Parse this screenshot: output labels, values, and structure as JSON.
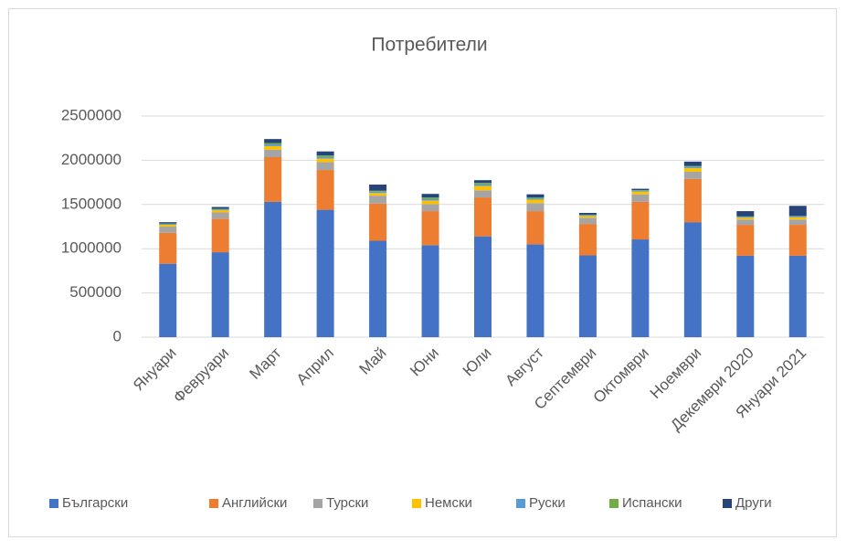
{
  "chart_data": {
    "type": "bar",
    "stacked": true,
    "title": "Потребители",
    "categories": [
      "Януари",
      "Февруари",
      "Март",
      "Април",
      "Май",
      "Юни",
      "Юли",
      "Август",
      "Септември",
      "Октомври",
      "Ноември",
      "Декември 2020",
      "Януари 2021"
    ],
    "series": [
      {
        "name": "Български",
        "color": "#4472c4",
        "values": [
          830000,
          960000,
          1530000,
          1440000,
          1090000,
          1040000,
          1140000,
          1050000,
          925000,
          1105000,
          1300000,
          920000,
          920000
        ]
      },
      {
        "name": "Английски",
        "color": "#ed7d31",
        "values": [
          350000,
          380000,
          505000,
          450000,
          420000,
          385000,
          440000,
          375000,
          355000,
          425000,
          490000,
          350000,
          350000
        ]
      },
      {
        "name": "Турски",
        "color": "#a5a5a5",
        "values": [
          70000,
          70000,
          85000,
          90000,
          90000,
          80000,
          80000,
          90000,
          70000,
          85000,
          80000,
          60000,
          60000
        ]
      },
      {
        "name": "Немски",
        "color": "#ffc000",
        "values": [
          20000,
          25000,
          40000,
          40000,
          30000,
          40000,
          50000,
          40000,
          20000,
          30000,
          40000,
          20000,
          25000
        ]
      },
      {
        "name": "Руски",
        "color": "#5b9bd5",
        "values": [
          10000,
          10000,
          20000,
          20000,
          15000,
          20000,
          20000,
          15000,
          10000,
          10000,
          15000,
          10000,
          10000
        ]
      },
      {
        "name": "Испански",
        "color": "#70ad47",
        "values": [
          5000,
          7000,
          15000,
          15000,
          10000,
          15000,
          15000,
          10000,
          5000,
          8000,
          10000,
          5000,
          5000
        ]
      },
      {
        "name": "Други",
        "color": "#264478",
        "values": [
          15000,
          20000,
          45000,
          45000,
          70000,
          40000,
          30000,
          35000,
          20000,
          15000,
          50000,
          60000,
          115000
        ]
      }
    ],
    "ylim": [
      0,
      2500000
    ],
    "yticks": [
      0,
      500000,
      1000000,
      1500000,
      2000000,
      2500000
    ],
    "grid": true,
    "legend": "bottom"
  }
}
